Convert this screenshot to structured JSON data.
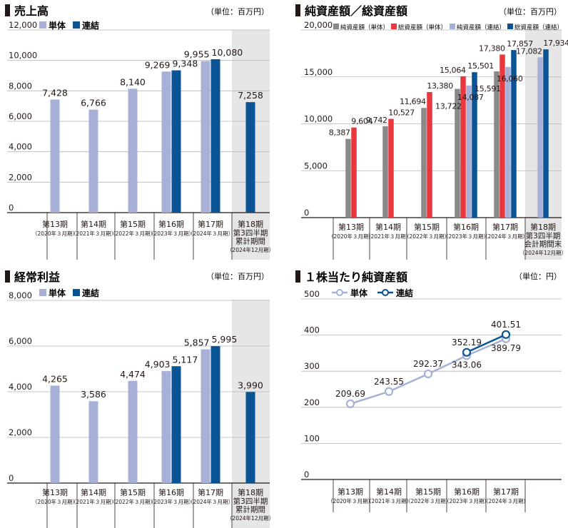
{
  "colors": {
    "tanntai": "#a7b1d8",
    "renketsu": "#0a5394",
    "net_tanntai": "#898989",
    "total_tanntai": "#e8383d",
    "net_renketsu": "#a7b1d8",
    "total_renketsu": "#0a5394",
    "highlight_bg": "#e6e6e6",
    "axis": "#231815",
    "grid": "#b5b5b5"
  },
  "chart_data": [
    {
      "id": "sales",
      "type": "bar",
      "title": "売上高",
      "unit": "（単位：百万円）",
      "categories": [
        "第13期",
        "第14期",
        "第15期",
        "第16期",
        "第17期",
        "第18期"
      ],
      "category_sub": [
        "（2020年３月期）",
        "（2021年３月期）",
        "（2022年３月期）",
        "（2023年３月期）",
        "（2024年３月期）",
        "第3四半期|累計期間|（2024年12月期）"
      ],
      "series": [
        {
          "name": "単体",
          "values": [
            7428,
            6766,
            8140,
            9269,
            9955,
            null
          ],
          "labels": [
            "7,428",
            "6,766",
            "8,140",
            "9,269",
            "9,955",
            ""
          ]
        },
        {
          "name": "連結",
          "values": [
            null,
            null,
            null,
            9348,
            10080,
            7258
          ],
          "labels": [
            "",
            "",
            "",
            "9,348",
            "10,080",
            "7,258"
          ]
        }
      ],
      "ylim": [
        0,
        12000
      ],
      "yticks": [
        0,
        2000,
        4000,
        6000,
        8000,
        10000,
        12000
      ],
      "ytick_labels": [
        "0",
        "2,000",
        "4,000",
        "6,000",
        "8,000",
        "10,000",
        "12,000"
      ],
      "grid": true,
      "legend": "top-left"
    },
    {
      "id": "net_assets",
      "type": "bar",
      "title": "純資産額／総資産額",
      "unit": "（単位：百万円）",
      "categories": [
        "第13期",
        "第14期",
        "第15期",
        "第16期",
        "第17期",
        "第18期"
      ],
      "category_sub": [
        "（2020年３月期）",
        "（2021年３月期）",
        "（2022年３月期）",
        "（2023年３月期）",
        "（2024年３月期）",
        "第3四半期|会計期間末|（2024年12月期）"
      ],
      "series": [
        {
          "name": "純資産額（単体）",
          "values": [
            8387,
            9742,
            11694,
            13722,
            15591,
            null
          ],
          "labels": [
            "8,387",
            "9,742",
            "11,694",
            "13,722",
            "15,591",
            ""
          ]
        },
        {
          "name": "総資産額（単体）",
          "values": [
            9604,
            10527,
            13380,
            15064,
            17380,
            null
          ],
          "labels": [
            "9,604",
            "10,527",
            "13,380",
            "15,064",
            "17,380",
            ""
          ]
        },
        {
          "name": "純資産額（連結）",
          "values": [
            null,
            null,
            null,
            14087,
            16060,
            17082
          ],
          "labels": [
            "",
            "",
            "",
            "14,087",
            "16,060",
            "17,082"
          ]
        },
        {
          "name": "総資産額（連結）",
          "values": [
            null,
            null,
            null,
            15501,
            17857,
            17934
          ],
          "labels": [
            "",
            "",
            "",
            "15,501",
            "17,857",
            "17,934"
          ]
        }
      ],
      "ylim": [
        0,
        20000
      ],
      "yticks": [
        0,
        5000,
        10000,
        15000,
        20000
      ],
      "ytick_labels": [
        "0",
        "5,000",
        "10,000",
        "15,000",
        "20,000"
      ],
      "grid": true,
      "legend": "top"
    },
    {
      "id": "ordinary_profit",
      "type": "bar",
      "title": "経常利益",
      "unit": "（単位：百万円）",
      "categories": [
        "第13期",
        "第14期",
        "第15期",
        "第16期",
        "第17期",
        "第18期"
      ],
      "category_sub": [
        "（2020年３月期）",
        "（2021年３月期）",
        "（2022年３月期）",
        "（2023年３月期）",
        "（2024年３月期）",
        "第3四半期|累計期間|（2024年12月期）"
      ],
      "series": [
        {
          "name": "単体",
          "values": [
            4265,
            3586,
            4474,
            4903,
            5857,
            null
          ],
          "labels": [
            "4,265",
            "3,586",
            "4,474",
            "4,903",
            "5,857",
            ""
          ]
        },
        {
          "name": "連結",
          "values": [
            null,
            null,
            null,
            5117,
            5995,
            3990
          ],
          "labels": [
            "",
            "",
            "",
            "5,117",
            "5,995",
            "3,990"
          ]
        }
      ],
      "ylim": [
        0,
        8000
      ],
      "yticks": [
        0,
        2000,
        4000,
        6000,
        8000
      ],
      "ytick_labels": [
        "0",
        "2,000",
        "4,000",
        "6,000",
        "8,000"
      ],
      "grid": true,
      "legend": "top-left"
    },
    {
      "id": "bps",
      "type": "line",
      "title": "１株当たり純資産額",
      "unit": "（単位：円）",
      "categories": [
        "第13期",
        "第14期",
        "第15期",
        "第16期",
        "第17期"
      ],
      "category_sub": [
        "（2020年３月期）",
        "（2021年３月期）",
        "（2022年３月期）",
        "（2023年３月期）",
        "（2024年３月期）"
      ],
      "series": [
        {
          "name": "単体",
          "values": [
            209.69,
            243.55,
            292.37,
            343.06,
            389.79
          ],
          "labels": [
            "209.69",
            "243.55",
            "292.37",
            "343.06",
            "389.79"
          ]
        },
        {
          "name": "連結",
          "values": [
            null,
            null,
            null,
            352.19,
            401.51
          ],
          "labels": [
            "",
            "",
            "",
            "352.19",
            "401.51"
          ]
        }
      ],
      "ylim": [
        0,
        500
      ],
      "yticks": [
        0,
        100,
        200,
        300,
        400,
        500
      ],
      "ytick_labels": [
        "0",
        "100",
        "200",
        "300",
        "400",
        "500"
      ],
      "grid": true,
      "legend": "top-left"
    }
  ]
}
